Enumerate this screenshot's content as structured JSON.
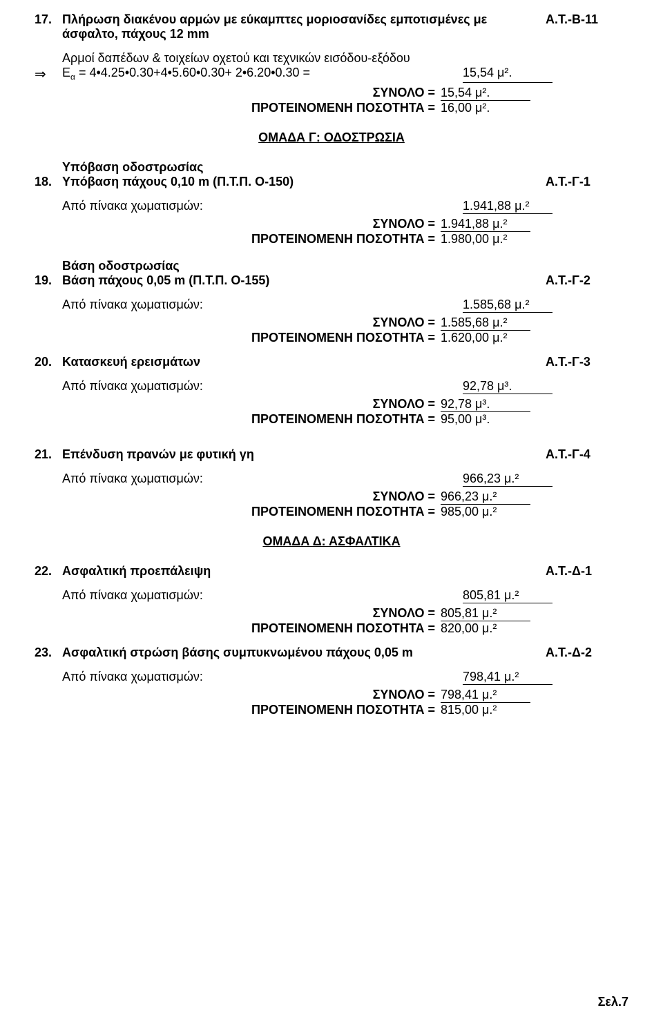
{
  "item17": {
    "num": "17.",
    "title": "Πλήρωση διακένου αρμών με εύκαμπτες μοριοσανίδες εμποτισμένες με άσφαλτο, πάχους 12 mm",
    "code": "Α.Τ.-Β-11",
    "desc_line": "Αρμοί δαπέδων & τοιχείων οχετού και τεχνικών εισόδου-εξόδου",
    "formula_prefix": "Ε",
    "formula_rest": " = 4•4.25•0.30+4•5.60•0.30+ 2•6.20•0.30 =",
    "value": "15,54 μ².",
    "sum_label": "ΣΥΝΟΛΟ =",
    "sum_value": "15,54 μ².",
    "rec_label": "ΠΡΟΤΕΙΝΟΜΕΝΗ ΠΟΣΟΤΗΤΑ =",
    "rec_value": "16,00 μ²."
  },
  "groupG": "ΟΜΑΔΑ Γ:  ΟΔΟΣΤΡΩΣΙΑ",
  "item18": {
    "subhead": "Υπόβαση οδοστρωσίας",
    "num": "18.",
    "title": "Υπόβαση πάχους 0,10 m (Π.Τ.Π. Ο-150)",
    "code": "Α.Τ.-Γ-1",
    "desc": "Από πίνακα χωματισμών:",
    "value": "1.941,88 μ.²",
    "sum_label": "ΣΥΝΟΛΟ =",
    "sum_value": "1.941,88 μ.²",
    "rec_label": "ΠΡΟΤΕΙΝΟΜΕΝΗ ΠΟΣΟΤΗΤΑ =",
    "rec_value": "1.980,00 μ.²"
  },
  "item19": {
    "subhead": "Βάση οδοστρωσίας",
    "num": "19.",
    "title": "Βάση πάχους  0,05 m (Π.Τ.Π. Ο-155)",
    "code": "Α.Τ.-Γ-2",
    "desc": "Από πίνακα χωματισμών:",
    "value": "1.585,68 μ.²",
    "sum_label": "ΣΥΝΟΛΟ =",
    "sum_value": "1.585,68 μ.²",
    "rec_label": "ΠΡΟΤΕΙΝΟΜΕΝΗ ΠΟΣΟΤΗΤΑ =",
    "rec_value": "1.620,00 μ.²"
  },
  "item20": {
    "num": "20.",
    "title": "Κατασκευή ερεισμάτων",
    "code": "Α.Τ.-Γ-3",
    "desc": "Από πίνακα χωματισμών:",
    "value": "92,78 μ³.",
    "sum_label": "ΣΥΝΟΛΟ =",
    "sum_value": "92,78 μ³.",
    "rec_label": "ΠΡΟΤΕΙΝΟΜΕΝΗ ΠΟΣΟΤΗΤΑ =",
    "rec_value": "95,00 μ³."
  },
  "item21": {
    "num": "21.",
    "title": "Επένδυση πρανών με φυτική γη",
    "code": "Α.Τ.-Γ-4",
    "desc": "Από πίνακα χωματισμών:",
    "value": "966,23 μ.²",
    "sum_label": "ΣΥΝΟΛΟ =",
    "sum_value": "966,23 μ.²",
    "rec_label": "ΠΡΟΤΕΙΝΟΜΕΝΗ ΠΟΣΟΤΗΤΑ =",
    "rec_value": "985,00 μ.²"
  },
  "groupD": "ΟΜΑΔΑ Δ:  ΑΣΦΑΛΤΙΚΑ ",
  "item22": {
    "num": "22.",
    "title": "Ασφαλτική προεπάλειψη",
    "code": "Α.Τ.-Δ-1",
    "desc": "Από πίνακα χωματισμών:",
    "value": "805,81 μ.²",
    "sum_label": "ΣΥΝΟΛΟ =",
    "sum_value": "805,81 μ.²",
    "rec_label": "ΠΡΟΤΕΙΝΟΜΕΝΗ ΠΟΣΟΤΗΤΑ =",
    "rec_value": "820,00 μ.²"
  },
  "item23": {
    "num": "23.",
    "title": "Ασφαλτική στρώση βάσης συμπυκνωμένου πάχους 0,05 m",
    "code": "Α.Τ.-Δ-2",
    "desc": "Από πίνακα χωματισμών:",
    "value": "798,41 μ.²",
    "sum_label": "ΣΥΝΟΛΟ =",
    "sum_value": "798,41 μ.²",
    "rec_label": "ΠΡΟΤΕΙΝΟΜΕΝΗ ΠΟΣΟΤΗΤΑ =",
    "rec_value": "815,00 μ.²"
  },
  "page_num": "Σελ.7"
}
